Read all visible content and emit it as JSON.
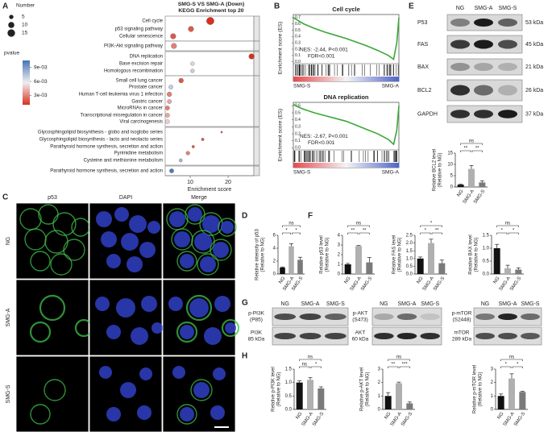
{
  "panel_labels": [
    "A",
    "B",
    "C",
    "D",
    "E",
    "F",
    "G",
    "H"
  ],
  "chart_data": [
    {
      "type": "dotplot",
      "title": [
        "SMG-S VS SMG-A (Down)",
        "KEGG Enrichment top 20"
      ],
      "categories": [
        "Cell cycle",
        "p53 signaling pathway",
        "Cellular senescence",
        "PI3K-Akt signaling pathway",
        "DNA replication",
        "Base excision repair",
        "Homologous recombination",
        "Small cell lung cancer",
        "Prostate cancer",
        "Human T-cell leukemia virus 1 infection",
        "Gastric cancer",
        "MicroRNAs in cancer",
        "Transcriptional misregulation in cancer",
        "Viral carcinogenesis",
        "Glycosphingolipid biosynthesis - globo and isoglobo series",
        "Glycosphingolipid biosynthesis - lacto and neolacto series",
        "Parathyroid hormone synthesis, secretion and action",
        "Pyrimidine metabolism",
        "Cysteine and methionine metabolism",
        "Parathyroid hormone synthesis, secretion and action"
      ],
      "values": [
        15.3,
        10.2,
        5.5,
        5.7,
        26.2,
        10.6,
        10.6,
        7.6,
        4.9,
        4.5,
        4.5,
        4.0,
        4.0,
        4.0,
        18.3,
        13.3,
        10.8,
        9.4,
        7.5,
        5.1
      ],
      "counts": [
        15,
        8,
        8,
        8,
        8,
        4,
        4,
        6,
        5,
        6,
        5,
        5,
        5,
        5,
        1,
        2,
        2,
        4,
        3,
        5
      ],
      "pvalues": [
        0.001,
        0.002,
        0.002,
        0.003,
        0.001,
        0.005,
        0.007,
        0.002,
        0.007,
        0.003,
        0.004,
        0.003,
        0.004,
        0.005,
        0.002,
        0.002,
        0.002,
        0.003,
        0.008,
        0.0102
      ],
      "xlabel": "Enrichment score",
      "xlim": [
        3.4,
        26.8
      ],
      "xticks": [
        10,
        20
      ],
      "size_label": "Number",
      "size_legend": [
        5,
        10,
        15
      ],
      "color_label": "pvalue",
      "color_range": [
        0.001,
        0.0105
      ],
      "colors": [
        "#d7301f",
        "#f0eef0",
        "#4575b4"
      ],
      "color_ticks": [
        {
          "value": 0.009,
          "label": "9e-03"
        },
        {
          "value": 0.006,
          "label": "6e-03"
        },
        {
          "value": 0.003,
          "label": "3e-03"
        }
      ]
    },
    {
      "type": "line",
      "title": "Cell cycle",
      "ylabel": "Enrichment score (ES)",
      "color": "#3aa835",
      "x": [
        0,
        0.05,
        0.1,
        0.2,
        0.3,
        0.4,
        0.5,
        0.6,
        0.7,
        0.8,
        0.9,
        0.95,
        0.98,
        1
      ],
      "values": [
        0.7,
        0.65,
        0.6,
        0.53,
        0.47,
        0.42,
        0.37,
        0.31,
        0.25,
        0.18,
        0.1,
        0.04,
        0.3,
        0.7
      ],
      "xlim": [
        0,
        1
      ],
      "ylim": [
        -0.03,
        0.75
      ],
      "yticks": [
        {
          "value": 0,
          "label": "0.0"
        },
        0.1,
        0.2,
        0.3,
        0.4,
        0.5,
        0.6,
        0.7
      ],
      "annotations": [
        "NES: -2.44, P<0.001",
        "FDR<0.001"
      ],
      "ends": [
        "SMG-S",
        "SMG-A"
      ]
    },
    {
      "type": "line",
      "title": "DNA replication",
      "ylabel": "Enrichment score (ES)",
      "color": "#3aa835",
      "x": [
        0,
        0.05,
        0.1,
        0.2,
        0.3,
        0.4,
        0.5,
        0.6,
        0.7,
        0.8,
        0.9,
        0.95,
        0.98,
        1
      ],
      "values": [
        0.62,
        0.58,
        0.55,
        0.5,
        0.46,
        0.42,
        0.38,
        0.32,
        0.26,
        0.2,
        0.12,
        0.05,
        0.25,
        0.6
      ],
      "xlim": [
        0,
        1
      ],
      "ylim": [
        -0.03,
        0.65
      ],
      "yticks": [
        {
          "value": 0,
          "label": "0.0"
        },
        0.1,
        0.2,
        0.3,
        0.4,
        0.5,
        0.6
      ],
      "annotations": [
        "NES: -2.67, P<0.001",
        "FDR<0.001"
      ],
      "ends": [
        "SMG-S",
        "SMG-A"
      ]
    },
    {
      "type": "bar",
      "ylabel": [
        "Relative intensity of p53",
        "(Relative to NG)"
      ],
      "categories": [
        "NG",
        "SMG-A",
        "SMG-S"
      ],
      "values": [
        1,
        4.3,
        2.2
      ],
      "errors": [
        0.1,
        0.4,
        0.4
      ],
      "colors": [
        "#111111",
        "#b0b0b0",
        "#7a7a7a"
      ],
      "ylim": [
        0,
        6
      ],
      "yticks": [
        0,
        2,
        4,
        6
      ],
      "significance": [
        "*",
        "*",
        "ns"
      ]
    },
    {
      "type": "bar",
      "ylabel": [
        "Relative BCL2 level",
        "(Relative to NG)"
      ],
      "categories": [
        "NG",
        "SMG-A",
        "SMG-S"
      ],
      "values": [
        1,
        8,
        2
      ],
      "errors": [
        0.2,
        1.5,
        0.7
      ],
      "colors": [
        "#111111",
        "#b0b0b0",
        "#7a7a7a"
      ],
      "ylim": [
        0,
        15
      ],
      "yticks": [
        0,
        5,
        10,
        15
      ],
      "significance": [
        "**",
        "**",
        "ns"
      ]
    },
    {
      "type": "bar",
      "ylabel": [
        "Relative p53 level",
        "(Relative to NG)"
      ],
      "categories": [
        "NG",
        "SMG-A",
        "SMG-S"
      ],
      "values": [
        1,
        2.9,
        1.2
      ],
      "errors": [
        0.1,
        0.05,
        0.5
      ],
      "colors": [
        "#111111",
        "#b0b0b0",
        "#7a7a7a"
      ],
      "ylim": [
        0,
        4
      ],
      "yticks": [
        0,
        1,
        2,
        3,
        4
      ],
      "significance": [
        "**",
        "**",
        "ns"
      ]
    },
    {
      "type": "bar",
      "ylabel": [
        "Relative FAS level",
        "(Relative to NG)"
      ],
      "categories": [
        "NG",
        "SMG-A",
        "SMG-S"
      ],
      "values": [
        1,
        2,
        0.7
      ],
      "errors": [
        0.1,
        0.25,
        0.2
      ],
      "colors": [
        "#111111",
        "#b0b0b0",
        "#7a7a7a"
      ],
      "ylim": [
        0,
        2.5
      ],
      "yticks": [
        {
          "value": 0,
          "label": "0.0"
        },
        0.5,
        {
          "value": 1,
          "label": "1.0"
        },
        1.5,
        {
          "value": 2,
          "label": "2.0"
        },
        2.5
      ],
      "significance": [
        "*",
        "**",
        "*"
      ]
    },
    {
      "type": "bar",
      "ylabel": [
        "Relative BAX level",
        "(Relative to NG)"
      ],
      "categories": [
        "NG",
        "SMG-A",
        "SMG-S"
      ],
      "values": [
        1,
        0.22,
        0.17
      ],
      "errors": [
        0.15,
        0.12,
        0.07
      ],
      "colors": [
        "#111111",
        "#b0b0b0",
        "#7a7a7a"
      ],
      "ylim": [
        0,
        1.5
      ],
      "yticks": [
        {
          "value": 0,
          "label": "0.0"
        },
        0.5,
        {
          "value": 1,
          "label": "1.0"
        },
        1.5
      ],
      "significance": [
        "*",
        "*",
        "ns"
      ]
    },
    {
      "type": "bar",
      "ylabel": [
        "Relative p-PI3K level",
        "(Relative to NG)"
      ],
      "categories": [
        "NG",
        "SMG-A",
        "SMG-S"
      ],
      "values": [
        1,
        1.1,
        0.78
      ],
      "errors": [
        0.06,
        0.08,
        0.06
      ],
      "colors": [
        "#111111",
        "#b0b0b0",
        "#7a7a7a"
      ],
      "ylim": [
        0,
        1.5
      ],
      "yticks": [
        {
          "value": 0,
          "label": "0.0"
        },
        0.5,
        {
          "value": 1,
          "label": "1.0"
        },
        1.5
      ],
      "significance": [
        "ns",
        "*",
        "ns"
      ]
    },
    {
      "type": "bar",
      "ylabel": [
        "Relative p-AKT level",
        "(Relative to NG)"
      ],
      "categories": [
        "NG",
        "SMG-A",
        "SMG-S"
      ],
      "values": [
        1,
        1.95,
        0.45
      ],
      "errors": [
        0.25,
        0.08,
        0.1
      ],
      "colors": [
        "#111111",
        "#b0b0b0",
        "#7a7a7a"
      ],
      "ylim": [
        0,
        3
      ],
      "yticks": [
        0,
        1,
        2,
        3
      ],
      "significance": [
        "**",
        "***",
        "ns"
      ]
    },
    {
      "type": "bar",
      "ylabel": [
        "Relative p-mTOR level",
        "(Relative to NG)"
      ],
      "categories": [
        "NG",
        "SMG-A",
        "SMG-S"
      ],
      "values": [
        1,
        2.3,
        1.3
      ],
      "errors": [
        0.15,
        0.35,
        0.05
      ],
      "colors": [
        "#111111",
        "#b0b0b0",
        "#7a7a7a"
      ],
      "ylim": [
        0,
        3
      ],
      "yticks": [
        0,
        1,
        2,
        3
      ],
      "significance": [
        "*",
        "*",
        "ns"
      ]
    }
  ],
  "microscopy": {
    "channels": [
      "p53",
      "DAPI",
      "Merge"
    ],
    "rows": [
      "NG",
      "SMG-A",
      "SMG-S"
    ]
  },
  "western_e": {
    "lanes": [
      "NG",
      "SMG-A",
      "SMG-S"
    ],
    "rows": [
      {
        "protein": "P53",
        "size": "53 kDa"
      },
      {
        "protein": "FAS",
        "size": "45 kDa"
      },
      {
        "protein": "BAX",
        "size": "21 kDa"
      },
      {
        "protein": "BCL2",
        "size": "26 kDa"
      },
      {
        "protein": "GAPDH",
        "size": "37 kDa"
      }
    ]
  },
  "western_g": [
    {
      "lanes": [
        "NG",
        "SMG-A",
        "SMG-S"
      ],
      "rows": [
        [
          "p-PI3K",
          "(P85)"
        ],
        [
          "PI3K",
          "85 kDa"
        ]
      ]
    },
    {
      "lanes": [
        "NG",
        "SMG-A",
        "SMG-S"
      ],
      "rows": [
        [
          "p-AKT",
          "(S473)"
        ],
        [
          "AKT",
          "60 kDa"
        ]
      ]
    },
    {
      "lanes": [
        "NG",
        "SMG-A",
        "SMG-S"
      ],
      "rows": [
        [
          "p-mTOR",
          "(S2448)"
        ],
        [
          "mTOR",
          "289 kDa"
        ]
      ]
    }
  ]
}
